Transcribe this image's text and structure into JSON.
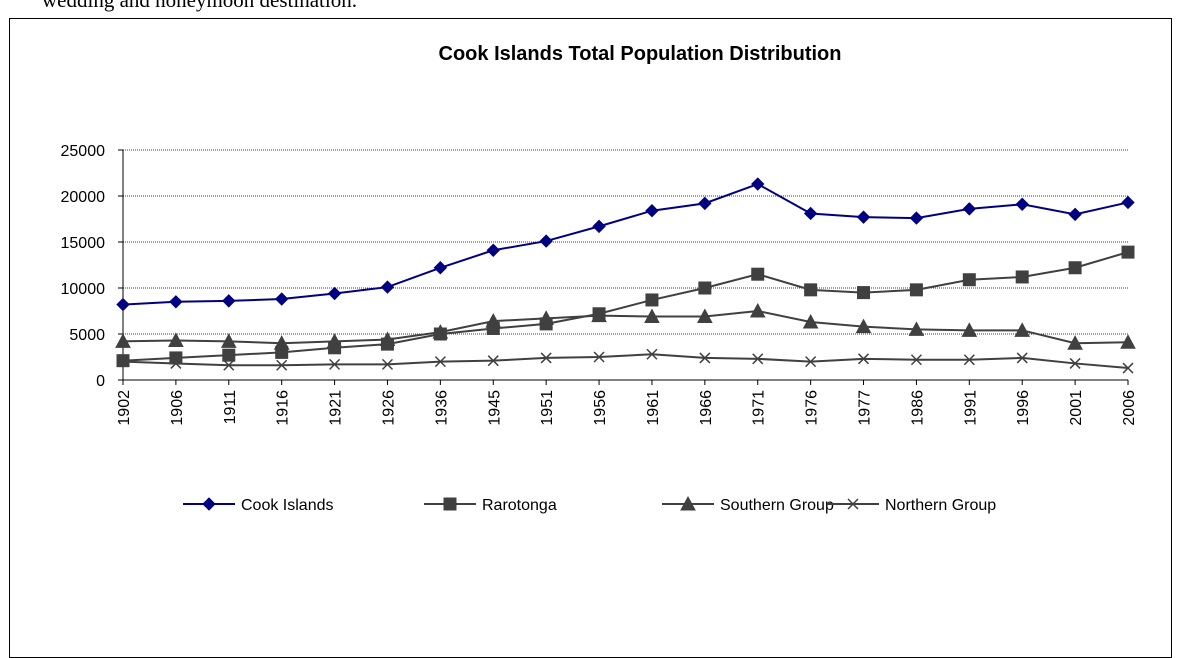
{
  "document": {
    "text_fragment": "wedding and honeymoon destination."
  },
  "chart_data": {
    "type": "line",
    "title": "Cook Islands Total Population Distribution",
    "categories": [
      "1902",
      "1906",
      "1911",
      "1916",
      "1921",
      "1926",
      "1936",
      "1945",
      "1951",
      "1956",
      "1961",
      "1966",
      "1971",
      "1976",
      "1977",
      "1986",
      "1991",
      "1996",
      "2001",
      "2006"
    ],
    "ylim": [
      0,
      25000
    ],
    "yticks": [
      "0",
      "5000",
      "10000",
      "15000",
      "20000",
      "25000"
    ],
    "grid": true,
    "legend_position": "bottom",
    "series": [
      {
        "name": "Cook Islands",
        "marker": "diamond",
        "color": "#000080",
        "values": [
          8200,
          8500,
          8600,
          8800,
          9400,
          10100,
          12200,
          14100,
          15100,
          16700,
          18400,
          19200,
          21300,
          18100,
          17700,
          17600,
          18600,
          19100,
          18000,
          19300
        ]
      },
      {
        "name": "Rarotonga",
        "marker": "square",
        "color": "#404040",
        "values": [
          2100,
          2400,
          2700,
          3000,
          3500,
          3900,
          5000,
          5600,
          6100,
          7200,
          8700,
          10000,
          11500,
          9800,
          9500,
          9800,
          10900,
          11200,
          12200,
          13900
        ]
      },
      {
        "name": "Southern Group",
        "marker": "triangle",
        "color": "#404040",
        "values": [
          4200,
          4300,
          4200,
          4000,
          4200,
          4400,
          5200,
          6400,
          6700,
          7000,
          6900,
          6900,
          7500,
          6300,
          5800,
          5500,
          5400,
          5400,
          4000,
          4100
        ]
      },
      {
        "name": "Northern Group",
        "marker": "x",
        "color": "#404040",
        "values": [
          2000,
          1800,
          1600,
          1600,
          1700,
          1700,
          2000,
          2100,
          2400,
          2500,
          2800,
          2400,
          2300,
          2000,
          2300,
          2200,
          2200,
          2400,
          1800,
          1300
        ]
      }
    ]
  }
}
